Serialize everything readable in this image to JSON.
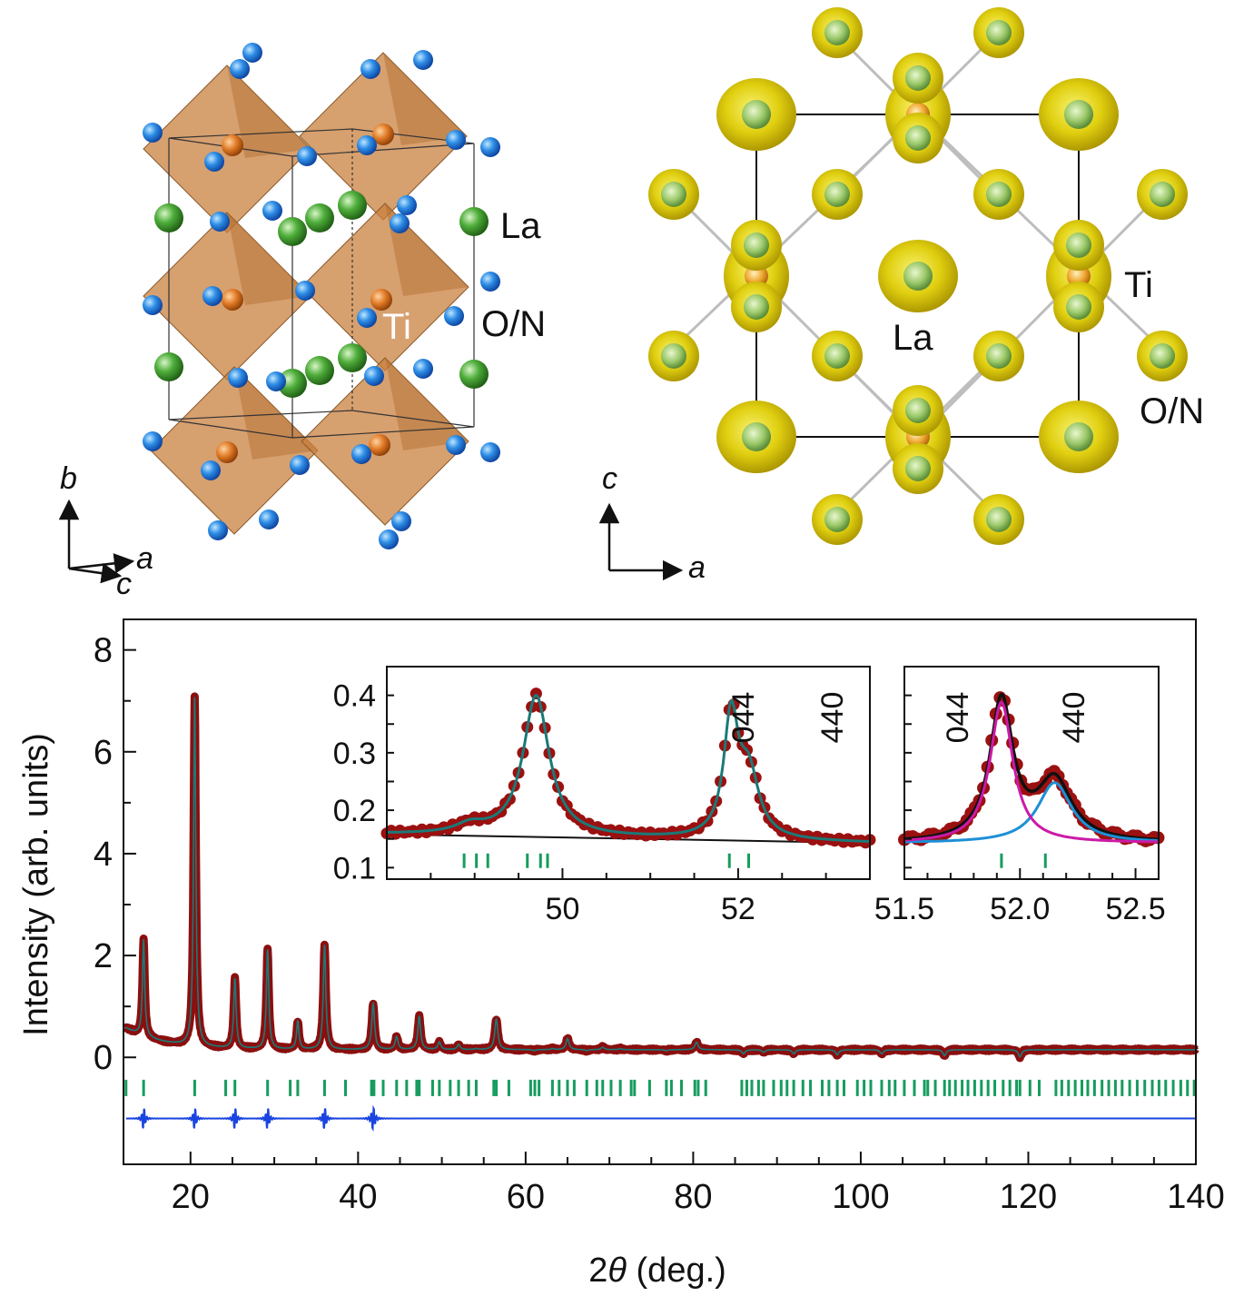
{
  "structure_left": {
    "atom_labels": {
      "la": "La",
      "ti": "Ti",
      "on": "O/N"
    },
    "axes": {
      "up": "b",
      "right": "a",
      "depth": "c"
    },
    "colors": {
      "La": "#3f9a2c",
      "Ti": "#e07a26",
      "O/N": "#1f6fd0",
      "octahedron": "#c9803f"
    }
  },
  "structure_right": {
    "atom_labels": {
      "ti": "Ti",
      "la": "La",
      "on": "O/N"
    },
    "axes": {
      "up": "c",
      "right": "a"
    },
    "colors": {
      "density": "#d9c200",
      "La": "#6aa84f",
      "Ti": "#e8a020"
    }
  },
  "chart_data": [
    {
      "type": "line",
      "xlabel_prefix": "2",
      "xlabel_theta": "θ",
      "xlabel_suffix": " (deg.)",
      "ylabel": "Intensity (arb. units)",
      "xlim": [
        12,
        140
      ],
      "ylim": [
        -2.1,
        8.6
      ],
      "xticks": [
        20,
        40,
        60,
        80,
        100,
        120,
        140
      ],
      "yticks": [
        0,
        2,
        4,
        6,
        8
      ],
      "grid": false,
      "background_level": 0.15,
      "peaks": [
        {
          "x": 14.4,
          "y": 2.1,
          "w": 0.16
        },
        {
          "x": 20.5,
          "y": 7.05,
          "w": 0.16
        },
        {
          "x": 25.3,
          "y": 1.57,
          "w": 0.17
        },
        {
          "x": 29.2,
          "y": 2.15,
          "w": 0.17
        },
        {
          "x": 32.8,
          "y": 0.75,
          "w": 0.17
        },
        {
          "x": 36.0,
          "y": 2.25,
          "w": 0.18
        },
        {
          "x": 41.8,
          "y": 1.1,
          "w": 0.2
        },
        {
          "x": 44.6,
          "y": 0.45,
          "w": 0.2
        },
        {
          "x": 47.3,
          "y": 0.85,
          "w": 0.2
        },
        {
          "x": 49.7,
          "y": 0.35,
          "w": 0.2
        },
        {
          "x": 52.0,
          "y": 0.3,
          "w": 0.2
        },
        {
          "x": 54.1,
          "y": 0.22,
          "w": 0.2
        },
        {
          "x": 56.5,
          "y": 0.8,
          "w": 0.22
        },
        {
          "x": 61.0,
          "y": 0.18,
          "w": 0.22
        },
        {
          "x": 63.2,
          "y": 0.22,
          "w": 0.22
        },
        {
          "x": 65.0,
          "y": 0.42,
          "w": 0.22
        },
        {
          "x": 67.3,
          "y": 0.18,
          "w": 0.22
        },
        {
          "x": 69.2,
          "y": 0.25,
          "w": 0.22
        },
        {
          "x": 71.3,
          "y": 0.22,
          "w": 0.22
        },
        {
          "x": 73.0,
          "y": 0.2,
          "w": 0.22
        },
        {
          "x": 76.8,
          "y": 0.18,
          "w": 0.22
        },
        {
          "x": 80.4,
          "y": 0.35,
          "w": 0.22
        },
        {
          "x": 86.0,
          "y": 0.12,
          "w": 0.22
        },
        {
          "x": 88.4,
          "y": 0.15,
          "w": 0.22
        },
        {
          "x": 92.0,
          "y": 0.12,
          "w": 0.22
        },
        {
          "x": 97.2,
          "y": 0.1,
          "w": 0.22
        },
        {
          "x": 102.5,
          "y": 0.12,
          "w": 0.22
        },
        {
          "x": 110.0,
          "y": 0.08,
          "w": 0.22
        },
        {
          "x": 119.0,
          "y": 0.06,
          "w": 0.22
        }
      ],
      "reflection_marks_y": -0.6,
      "reflection_positions": [
        12.3,
        14.4,
        20.5,
        24.2,
        25.3,
        29.2,
        31.9,
        32.8,
        36.0,
        38.5,
        41.6,
        41.9,
        43.0,
        44.6,
        45.8,
        47.0,
        47.3,
        48.9,
        49.7,
        51.0,
        52.0,
        53.2,
        54.1,
        56.2,
        56.5,
        58.0,
        60.6,
        61.1,
        61.6,
        63.2,
        64.0,
        65.0,
        65.8,
        67.3,
        68.5,
        69.2,
        70.2,
        71.3,
        72.6,
        73.0,
        74.8,
        76.8,
        77.4,
        78.6,
        80.2,
        80.6,
        81.5,
        85.8,
        86.4,
        87.0,
        87.8,
        88.4,
        89.6,
        90.5,
        91.2,
        92.0,
        93.1,
        94.0,
        95.4,
        96.2,
        97.2,
        98.0,
        99.6,
        100.4,
        101.2,
        102.5,
        103.4,
        104.1,
        105.2,
        106.4,
        107.6,
        108.0,
        108.9,
        110.0,
        110.6,
        111.3,
        112.1,
        112.8,
        113.6,
        114.4,
        115.2,
        116.0,
        117.0,
        117.8,
        118.6,
        119.0,
        120.2,
        121.3,
        123.3,
        124.0,
        124.8,
        125.6,
        126.4,
        127.1,
        127.9,
        128.8,
        129.6,
        130.4,
        131.2,
        132.1,
        133.0,
        133.9,
        134.8,
        135.6,
        136.4,
        137.3,
        138.2,
        139.0,
        139.8
      ],
      "difference_offset": -1.2,
      "colors": {
        "observed": "#8b0f0f",
        "calculated": "#1a7a78",
        "reflections": "#169c5e",
        "difference": "#1a44e0"
      }
    },
    {
      "type": "line",
      "inset": "left",
      "xlim": [
        48.0,
        53.5
      ],
      "ylim": [
        0.08,
        0.45
      ],
      "xticks": [
        50,
        52
      ],
      "yticks": [
        0.1,
        0.2,
        0.3,
        0.4
      ],
      "ytick_labels": [
        "0.1",
        "0.2",
        "0.3",
        "0.4"
      ],
      "peak_labels": [
        "044",
        "440"
      ],
      "peaks": [
        {
          "x": 49.7,
          "y": 0.245,
          "w": 0.18
        },
        {
          "x": 51.92,
          "y": 0.205,
          "w": 0.1
        },
        {
          "x": 52.12,
          "y": 0.11,
          "w": 0.14
        },
        {
          "x": 48.95,
          "y": 0.015,
          "w": 0.2
        }
      ],
      "background": [
        [
          48.0,
          0.158
        ],
        [
          53.5,
          0.143
        ]
      ],
      "reflection_positions": [
        48.88,
        49.02,
        49.15,
        49.6,
        49.75,
        49.83,
        51.9,
        52.12
      ],
      "reflection_marks_y": 0.112
    },
    {
      "type": "line",
      "inset": "right",
      "xlim": [
        51.5,
        52.6
      ],
      "ylim": [
        0.08,
        0.45
      ],
      "xticks": [
        51.5,
        52.0,
        52.5
      ],
      "xtick_labels": [
        "51.5",
        "52.0",
        "52.5"
      ],
      "peak_labels": [
        "044",
        "440"
      ],
      "series": [
        {
          "name": "044",
          "center": 51.92,
          "height": 0.245,
          "width": 0.06
        },
        {
          "name": "440",
          "center": 52.15,
          "height": 0.105,
          "width": 0.09
        }
      ],
      "background_level": 0.143,
      "reflection_positions": [
        51.92,
        52.11
      ],
      "reflection_marks_y": 0.112,
      "colors": {
        "peak_044": "#cc1aa6",
        "peak_440": "#1e8fd6",
        "sum": "#111111"
      }
    }
  ]
}
